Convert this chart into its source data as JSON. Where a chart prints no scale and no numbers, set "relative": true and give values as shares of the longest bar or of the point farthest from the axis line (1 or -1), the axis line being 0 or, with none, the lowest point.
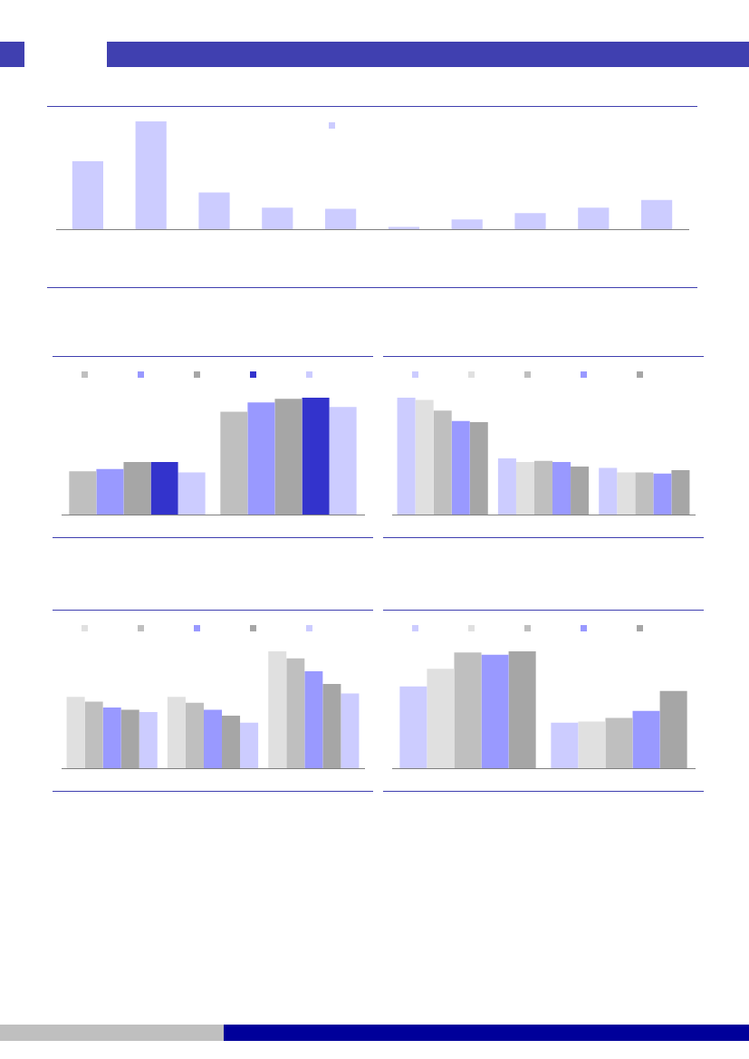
{
  "chart_data": [
    {
      "type": "bar",
      "relative": true,
      "tick_labels": false,
      "grid": false,
      "categories": [
        null,
        null,
        null,
        null,
        null,
        null,
        null,
        null,
        null,
        null
      ],
      "series": [
        {
          "color": "#ccccff",
          "values": [
            0.63,
            1,
            0.34,
            0.2,
            0.19,
            0.02,
            0.09,
            0.15,
            0.2,
            0.27
          ]
        }
      ]
    },
    {
      "type": "bar",
      "relative": true,
      "tick_labels": false,
      "grid": false,
      "categories": [
        null,
        null
      ],
      "series": [
        {
          "color": "#bfbfbf",
          "values": [
            0.37,
            0.88
          ]
        },
        {
          "color": "#9999ff",
          "values": [
            0.39,
            0.96
          ]
        },
        {
          "color": "#a6a6a6",
          "values": [
            0.45,
            0.99
          ]
        },
        {
          "color": "#3333cc",
          "values": [
            0.45,
            1
          ]
        },
        {
          "color": "#ccccff",
          "values": [
            0.36,
            0.92
          ]
        }
      ]
    },
    {
      "type": "bar",
      "relative": true,
      "tick_labels": false,
      "grid": false,
      "categories": [
        null,
        null,
        null
      ],
      "series": [
        {
          "color": "#ccccff",
          "values": [
            1,
            0.48,
            0.4
          ]
        },
        {
          "color": "#e0e0e0",
          "values": [
            0.98,
            0.45,
            0.36
          ]
        },
        {
          "color": "#bfbfbf",
          "values": [
            0.89,
            0.46,
            0.36
          ]
        },
        {
          "color": "#9999ff",
          "values": [
            0.8,
            0.45,
            0.35
          ]
        },
        {
          "color": "#a6a6a6",
          "values": [
            0.79,
            0.41,
            0.38
          ]
        }
      ]
    },
    {
      "type": "bar",
      "relative": true,
      "tick_labels": false,
      "grid": false,
      "categories": [
        null,
        null,
        null
      ],
      "series": [
        {
          "color": "#e0e0e0",
          "values": [
            0.61,
            0.61,
            1
          ]
        },
        {
          "color": "#bfbfbf",
          "values": [
            0.57,
            0.56,
            0.94
          ]
        },
        {
          "color": "#9999ff",
          "values": [
            0.52,
            0.5,
            0.83
          ]
        },
        {
          "color": "#a6a6a6",
          "values": [
            0.5,
            0.45,
            0.72
          ]
        },
        {
          "color": "#ccccff",
          "values": [
            0.48,
            0.39,
            0.64
          ]
        }
      ]
    },
    {
      "type": "bar",
      "relative": true,
      "tick_labels": false,
      "grid": false,
      "categories": [
        null,
        null
      ],
      "series": [
        {
          "color": "#ccccff",
          "values": [
            0.7,
            0.39
          ]
        },
        {
          "color": "#e0e0e0",
          "values": [
            0.85,
            0.4
          ]
        },
        {
          "color": "#bfbfbf",
          "values": [
            0.99,
            0.43
          ]
        },
        {
          "color": "#9999ff",
          "values": [
            0.97,
            0.49
          ]
        },
        {
          "color": "#a6a6a6",
          "values": [
            1,
            0.66
          ]
        }
      ]
    }
  ]
}
